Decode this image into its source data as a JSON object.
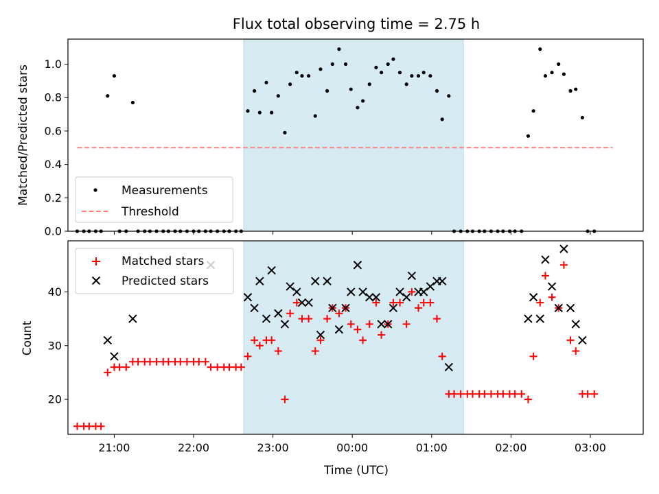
{
  "figure": {
    "title": "Flux total observing time = 2.75 h",
    "xlabel": "Time (UTC)",
    "x_tick_labels": [
      "21:00",
      "22:00",
      "23:00",
      "00:00",
      "01:00",
      "02:00",
      "03:00"
    ],
    "colors": {
      "highlight": "#add8e6",
      "measurement": "#000000",
      "threshold": "#ff7f7f",
      "matched": "#ff0000",
      "predicted": "#000000"
    }
  },
  "chart_data": [
    {
      "type": "scatter",
      "ylabel": "Matched/Predicted stars",
      "xlim": [
        "20:25",
        "03:40"
      ],
      "ylim": [
        0,
        1.15
      ],
      "y_ticks": [
        0.0,
        0.2,
        0.4,
        0.6,
        0.8,
        1.0
      ],
      "y_tick_labels": [
        "0.0",
        "0.2",
        "0.4",
        "0.6",
        "0.8",
        "1.0"
      ],
      "highlight_span": [
        "22:38",
        "01:24"
      ],
      "legend": {
        "location": "lower-left",
        "measurements_label": "Measurements",
        "threshold_label": "Threshold"
      },
      "threshold": {
        "value": 0.5,
        "x_range": [
          "20:32",
          "03:17"
        ]
      },
      "series": [
        {
          "name": "Measurements",
          "points": [
            [
              "20:32",
              0
            ],
            [
              "20:37",
              0
            ],
            [
              "20:41",
              0
            ],
            [
              "20:46",
              0
            ],
            [
              "20:50",
              0
            ],
            [
              "20:55",
              0.81
            ],
            [
              "21:00",
              0.93
            ],
            [
              "21:04",
              0
            ],
            [
              "21:09",
              0
            ],
            [
              "21:14",
              0.77
            ],
            [
              "21:18",
              0
            ],
            [
              "21:23",
              0
            ],
            [
              "21:27",
              0
            ],
            [
              "21:32",
              0
            ],
            [
              "21:37",
              0
            ],
            [
              "21:41",
              0
            ],
            [
              "21:46",
              0
            ],
            [
              "21:50",
              0
            ],
            [
              "21:55",
              0
            ],
            [
              "22:00",
              0
            ],
            [
              "22:04",
              0
            ],
            [
              "22:09",
              0
            ],
            [
              "22:13",
              0
            ],
            [
              "22:18",
              0
            ],
            [
              "22:23",
              0
            ],
            [
              "22:27",
              0
            ],
            [
              "22:32",
              0
            ],
            [
              "22:36",
              0
            ],
            [
              "22:41",
              0.72
            ],
            [
              "22:46",
              0.84
            ],
            [
              "22:50",
              0.71
            ],
            [
              "22:55",
              0.89
            ],
            [
              "22:59",
              0.71
            ],
            [
              "23:04",
              0.81
            ],
            [
              "23:09",
              0.59
            ],
            [
              "23:13",
              0.88
            ],
            [
              "23:18",
              0.95
            ],
            [
              "23:22",
              0.93
            ],
            [
              "23:27",
              0.93
            ],
            [
              "23:32",
              0.69
            ],
            [
              "23:36",
              0.97
            ],
            [
              "23:41",
              0.84
            ],
            [
              "23:45",
              1.0
            ],
            [
              "23:50",
              1.09
            ],
            [
              "23:55",
              1.0
            ],
            [
              "23:59",
              0.85
            ],
            [
              "00:04",
              0.74
            ],
            [
              "00:08",
              0.78
            ],
            [
              "00:13",
              0.88
            ],
            [
              "00:18",
              0.98
            ],
            [
              "00:22",
              0.95
            ],
            [
              "00:27",
              1.0
            ],
            [
              "00:31",
              1.03
            ],
            [
              "00:36",
              0.95
            ],
            [
              "00:41",
              0.88
            ],
            [
              "00:45",
              0.93
            ],
            [
              "00:50",
              0.93
            ],
            [
              "00:54",
              0.95
            ],
            [
              "00:59",
              0.93
            ],
            [
              "01:04",
              0.84
            ],
            [
              "01:08",
              0.67
            ],
            [
              "01:13",
              0.81
            ],
            [
              "01:17",
              0
            ],
            [
              "01:22",
              0
            ],
            [
              "01:27",
              0
            ],
            [
              "01:31",
              0
            ],
            [
              "01:36",
              0
            ],
            [
              "01:40",
              0
            ],
            [
              "01:45",
              0
            ],
            [
              "01:50",
              0
            ],
            [
              "01:54",
              0
            ],
            [
              "01:59",
              0
            ],
            [
              "02:03",
              0
            ],
            [
              "02:08",
              0
            ],
            [
              "02:13",
              0.57
            ],
            [
              "02:17",
              0.72
            ],
            [
              "02:22",
              1.09
            ],
            [
              "02:26",
              0.93
            ],
            [
              "02:31",
              0.95
            ],
            [
              "02:36",
              1.0
            ],
            [
              "02:40",
              0.94
            ],
            [
              "02:45",
              0.84
            ],
            [
              "02:49",
              0.85
            ],
            [
              "02:54",
              0.68
            ],
            [
              "02:58",
              0
            ],
            [
              "03:03",
              0
            ]
          ]
        }
      ]
    },
    {
      "type": "scatter",
      "ylabel": "Count",
      "xlim": [
        "20:25",
        "03:40"
      ],
      "ylim": [
        13.5,
        49.5
      ],
      "y_ticks": [
        20,
        30,
        40
      ],
      "y_tick_labels": [
        "20",
        "30",
        "40"
      ],
      "highlight_span": [
        "22:38",
        "01:24"
      ],
      "legend": {
        "location": "upper-left"
      },
      "series": [
        {
          "name": "Matched stars",
          "points": [
            [
              "20:32",
              15
            ],
            [
              "20:37",
              15
            ],
            [
              "20:41",
              15
            ],
            [
              "20:46",
              15
            ],
            [
              "20:50",
              15
            ],
            [
              "20:55",
              25
            ],
            [
              "21:00",
              26
            ],
            [
              "21:04",
              26
            ],
            [
              "21:09",
              26
            ],
            [
              "21:14",
              27
            ],
            [
              "21:18",
              27
            ],
            [
              "21:23",
              27
            ],
            [
              "21:27",
              27
            ],
            [
              "21:32",
              27
            ],
            [
              "21:37",
              27
            ],
            [
              "21:41",
              27
            ],
            [
              "21:46",
              27
            ],
            [
              "21:50",
              27
            ],
            [
              "21:55",
              27
            ],
            [
              "22:00",
              27
            ],
            [
              "22:04",
              27
            ],
            [
              "22:09",
              27
            ],
            [
              "22:13",
              26
            ],
            [
              "22:18",
              26
            ],
            [
              "22:23",
              26
            ],
            [
              "22:27",
              26
            ],
            [
              "22:32",
              26
            ],
            [
              "22:36",
              26
            ],
            [
              "22:41",
              28
            ],
            [
              "22:46",
              31
            ],
            [
              "22:50",
              30
            ],
            [
              "22:55",
              31
            ],
            [
              "22:59",
              31
            ],
            [
              "23:04",
              29
            ],
            [
              "23:09",
              20
            ],
            [
              "23:13",
              36
            ],
            [
              "23:18",
              38
            ],
            [
              "23:22",
              35
            ],
            [
              "23:27",
              35
            ],
            [
              "23:32",
              29
            ],
            [
              "23:36",
              31
            ],
            [
              "23:41",
              35
            ],
            [
              "23:45",
              37
            ],
            [
              "23:50",
              36
            ],
            [
              "23:55",
              37
            ],
            [
              "23:59",
              34
            ],
            [
              "00:04",
              33
            ],
            [
              "00:08",
              31
            ],
            [
              "00:13",
              34
            ],
            [
              "00:18",
              38
            ],
            [
              "00:22",
              32
            ],
            [
              "00:27",
              34
            ],
            [
              "00:31",
              38
            ],
            [
              "00:36",
              38
            ],
            [
              "00:41",
              34
            ],
            [
              "00:45",
              40
            ],
            [
              "00:50",
              37
            ],
            [
              "00:54",
              38
            ],
            [
              "00:59",
              38
            ],
            [
              "01:04",
              35
            ],
            [
              "01:08",
              28
            ],
            [
              "01:13",
              21
            ],
            [
              "01:17",
              21
            ],
            [
              "01:22",
              21
            ],
            [
              "01:27",
              21
            ],
            [
              "01:31",
              21
            ],
            [
              "01:36",
              21
            ],
            [
              "01:40",
              21
            ],
            [
              "01:45",
              21
            ],
            [
              "01:50",
              21
            ],
            [
              "01:54",
              21
            ],
            [
              "01:59",
              21
            ],
            [
              "02:03",
              21
            ],
            [
              "02:08",
              21
            ],
            [
              "02:13",
              20
            ],
            [
              "02:17",
              28
            ],
            [
              "02:22",
              38
            ],
            [
              "02:26",
              43
            ],
            [
              "02:31",
              39
            ],
            [
              "02:36",
              37
            ],
            [
              "02:40",
              45
            ],
            [
              "02:45",
              31
            ],
            [
              "02:49",
              29
            ],
            [
              "02:54",
              21
            ],
            [
              "02:58",
              21
            ],
            [
              "03:03",
              21
            ]
          ]
        },
        {
          "name": "Predicted stars",
          "points": [
            [
              "20:55",
              31
            ],
            [
              "21:00",
              28
            ],
            [
              "21:14",
              35
            ],
            [
              "22:13",
              45
            ],
            [
              "22:41",
              39
            ],
            [
              "22:46",
              37
            ],
            [
              "22:50",
              42
            ],
            [
              "22:55",
              35
            ],
            [
              "22:59",
              44
            ],
            [
              "23:04",
              36
            ],
            [
              "23:09",
              34
            ],
            [
              "23:13",
              41
            ],
            [
              "23:18",
              40
            ],
            [
              "23:22",
              38
            ],
            [
              "23:27",
              38
            ],
            [
              "23:32",
              42
            ],
            [
              "23:36",
              32
            ],
            [
              "23:41",
              42
            ],
            [
              "23:45",
              37
            ],
            [
              "23:50",
              33
            ],
            [
              "23:55",
              37
            ],
            [
              "23:59",
              40
            ],
            [
              "00:04",
              45
            ],
            [
              "00:08",
              40
            ],
            [
              "00:13",
              39
            ],
            [
              "00:18",
              39
            ],
            [
              "00:22",
              34
            ],
            [
              "00:27",
              34
            ],
            [
              "00:31",
              37
            ],
            [
              "00:36",
              40
            ],
            [
              "00:41",
              39
            ],
            [
              "00:45",
              43
            ],
            [
              "00:50",
              40
            ],
            [
              "00:54",
              40
            ],
            [
              "00:59",
              41
            ],
            [
              "01:04",
              42
            ],
            [
              "01:08",
              42
            ],
            [
              "01:13",
              26
            ],
            [
              "02:13",
              35
            ],
            [
              "02:17",
              39
            ],
            [
              "02:22",
              35
            ],
            [
              "02:26",
              46
            ],
            [
              "02:31",
              41
            ],
            [
              "02:36",
              37
            ],
            [
              "02:40",
              48
            ],
            [
              "02:45",
              37
            ],
            [
              "02:49",
              34
            ],
            [
              "02:54",
              31
            ]
          ]
        }
      ]
    }
  ]
}
